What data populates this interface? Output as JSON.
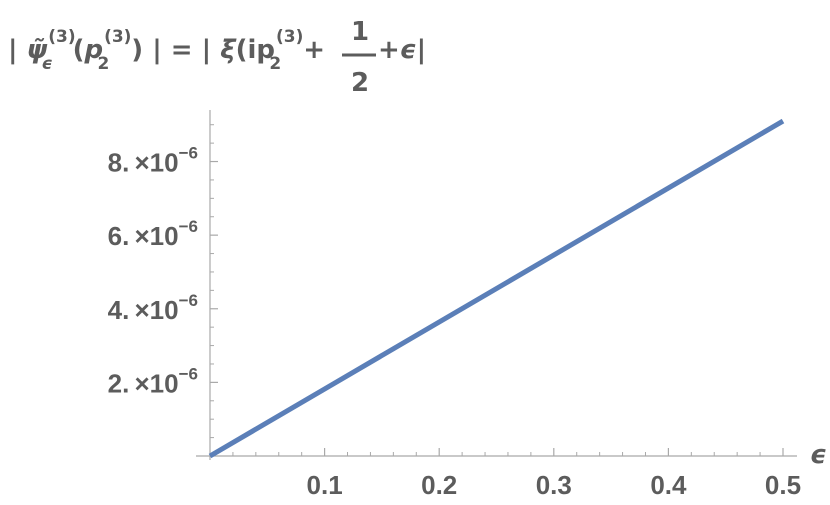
{
  "chart_data": {
    "type": "line",
    "title": {
      "lhs_open": "| ",
      "psi": "ψ̃",
      "psi_sup": "(3)",
      "psi_sub": "ϵ",
      "arg_open": "(",
      "p": "p",
      "p_sup": "(3)",
      "p_sub": "2",
      "arg_close": ")",
      "lhs_close": " |",
      "equals": " = ",
      "rhs_open": "| ",
      "xi": "ξ",
      "rhs_paren": "(ip",
      "rhs_p_sup": "(3)",
      "rhs_p_sub": "2",
      "plus1": "+",
      "frac_num": "1",
      "frac_den": "2",
      "plus2": "+",
      "eps": "ϵ",
      "rhs_close": "|"
    },
    "xlabel": "ϵ",
    "ylabel": "",
    "xlim": [
      0,
      0.5
    ],
    "ylim": [
      0,
      9.4e-06
    ],
    "x_ticks": [
      {
        "value": 0.1,
        "label": "0.1"
      },
      {
        "value": 0.2,
        "label": "0.2"
      },
      {
        "value": 0.3,
        "label": "0.3"
      },
      {
        "value": 0.4,
        "label": "0.4"
      },
      {
        "value": 0.5,
        "label": "0.5"
      }
    ],
    "y_ticks": [
      {
        "value": 2e-06,
        "mantissa": "2.",
        "times": "×",
        "base": "10",
        "exponent": "−6"
      },
      {
        "value": 4e-06,
        "mantissa": "4.",
        "times": "×",
        "base": "10",
        "exponent": "−6"
      },
      {
        "value": 6e-06,
        "mantissa": "6.",
        "times": "×",
        "base": "10",
        "exponent": "−6"
      },
      {
        "value": 8e-06,
        "mantissa": "8.",
        "times": "×",
        "base": "10",
        "exponent": "−6"
      }
    ],
    "x_minor_step": 0.02,
    "y_minor_step": 5e-07,
    "grid": false,
    "series": [
      {
        "color": "#5b7fb8",
        "x": [
          0,
          0.5
        ],
        "y": [
          0,
          9.1e-06
        ]
      }
    ],
    "axis_color": "#a9a9a9",
    "text_color": "#5c5c5c"
  }
}
